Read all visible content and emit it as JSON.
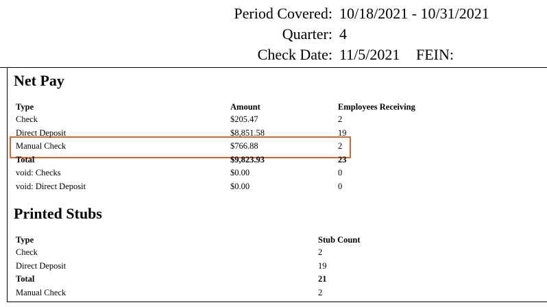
{
  "header": {
    "period_covered": {
      "label": "Period Covered:",
      "value": "10/18/2021 - 10/31/2021"
    },
    "quarter": {
      "label": "Quarter:",
      "value": "4"
    },
    "check_date": {
      "label": "Check Date:",
      "value": "11/5/2021",
      "fein_label": "FEIN:"
    }
  },
  "net_pay": {
    "title": "Net Pay",
    "columns": [
      "Type",
      "Amount",
      "Employees Receiving"
    ],
    "rows": [
      [
        "Check",
        "$205.47",
        "2"
      ],
      [
        "Direct Deposit",
        "$8,851.58",
        "19"
      ],
      [
        "Manual Check",
        "$766.88",
        "2"
      ],
      [
        "Total",
        "$9,823.93",
        "23"
      ],
      [
        "void: Checks",
        "$0.00",
        "0"
      ],
      [
        "void: Direct Deposit",
        "$0.00",
        "0"
      ]
    ]
  },
  "printed_stubs": {
    "title": "Printed Stubs",
    "columns": [
      "Type",
      "Stub Count"
    ],
    "rows": [
      [
        "Check",
        "2"
      ],
      [
        "Direct Deposit",
        "19"
      ],
      [
        "Total",
        "21"
      ],
      [
        "Manual Check",
        "2"
      ]
    ]
  }
}
